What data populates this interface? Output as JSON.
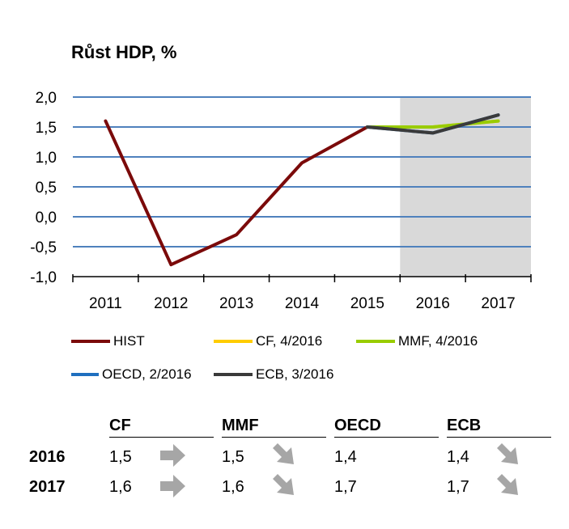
{
  "chart_data": {
    "type": "line",
    "title": "Růst HDP, %",
    "categories": [
      "2011",
      "2012",
      "2013",
      "2014",
      "2015",
      "2016",
      "2017"
    ],
    "ylim": [
      -1.0,
      2.0
    ],
    "yticks": [
      "2,0",
      "1,5",
      "1,0",
      "0,5",
      "0,0",
      "-0,5",
      "-1,0"
    ],
    "ytick_values": [
      2.0,
      1.5,
      1.0,
      0.5,
      0.0,
      -0.5,
      -1.0
    ],
    "grid": true,
    "forecast_shading": [
      "2016",
      "2017"
    ],
    "series": [
      {
        "name": "HIST",
        "color": "#7b0a0a",
        "x": [
          "2011",
          "2012",
          "2013",
          "2014",
          "2015"
        ],
        "values": [
          1.6,
          -0.8,
          -0.3,
          0.9,
          1.5
        ]
      },
      {
        "name": "CF, 4/2016",
        "color": "#ffcc00",
        "x": [
          "2015",
          "2016",
          "2017"
        ],
        "values": [
          1.5,
          1.5,
          1.6
        ]
      },
      {
        "name": "MMF, 4/2016",
        "color": "#99cc00",
        "x": [
          "2015",
          "2016",
          "2017"
        ],
        "values": [
          1.5,
          1.5,
          1.6
        ]
      },
      {
        "name": "OECD, 2/2016",
        "color": "#1f6fbf",
        "x": [
          "2015",
          "2016",
          "2017"
        ],
        "values": [
          1.5,
          1.4,
          1.7
        ]
      },
      {
        "name": "ECB, 3/2016",
        "color": "#3a3a3a",
        "x": [
          "2015",
          "2016",
          "2017"
        ],
        "values": [
          1.5,
          1.4,
          1.7
        ]
      }
    ]
  },
  "table": {
    "columns": [
      "CF",
      "MMF",
      "OECD",
      "ECB"
    ],
    "rows": [
      {
        "year": "2016",
        "values": [
          "1,5",
          "1,5",
          "1,4",
          "1,4"
        ],
        "arrows": [
          "right",
          "down-right",
          "none",
          "down-right"
        ]
      },
      {
        "year": "2017",
        "values": [
          "1,6",
          "1,6",
          "1,7",
          "1,7"
        ],
        "arrows": [
          "right",
          "down-right",
          "none",
          "down-right"
        ]
      }
    ]
  },
  "colors": {
    "grid": "#4f81bd",
    "shade": "#d9d9d9",
    "arrow": "#a6a6a6"
  }
}
